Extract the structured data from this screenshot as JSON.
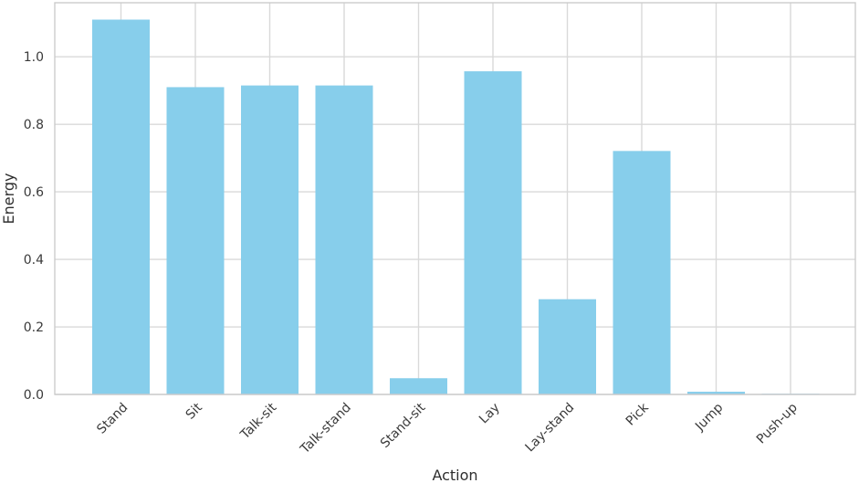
{
  "chart_data": {
    "type": "bar",
    "title": "",
    "xlabel": "Action",
    "ylabel": "Energy",
    "categories": [
      "Stand",
      "Sit",
      "Talk-sit",
      "Talk-stand",
      "Stand-sit",
      "Lay",
      "Lay-stand",
      "Pick",
      "Jump",
      "Push-up"
    ],
    "values": [
      1.11,
      0.91,
      0.915,
      0.915,
      0.048,
      0.957,
      0.282,
      0.721,
      0.008,
      0.002
    ],
    "ylim": [
      0,
      1.16
    ],
    "yticks": [
      0.0,
      0.2,
      0.4,
      0.6,
      0.8,
      1.0
    ],
    "ytick_labels": [
      "0.0",
      "0.2",
      "0.4",
      "0.6",
      "0.8",
      "1.0"
    ],
    "bar_color": "#87ceeb",
    "grid": true,
    "legend": "none"
  }
}
